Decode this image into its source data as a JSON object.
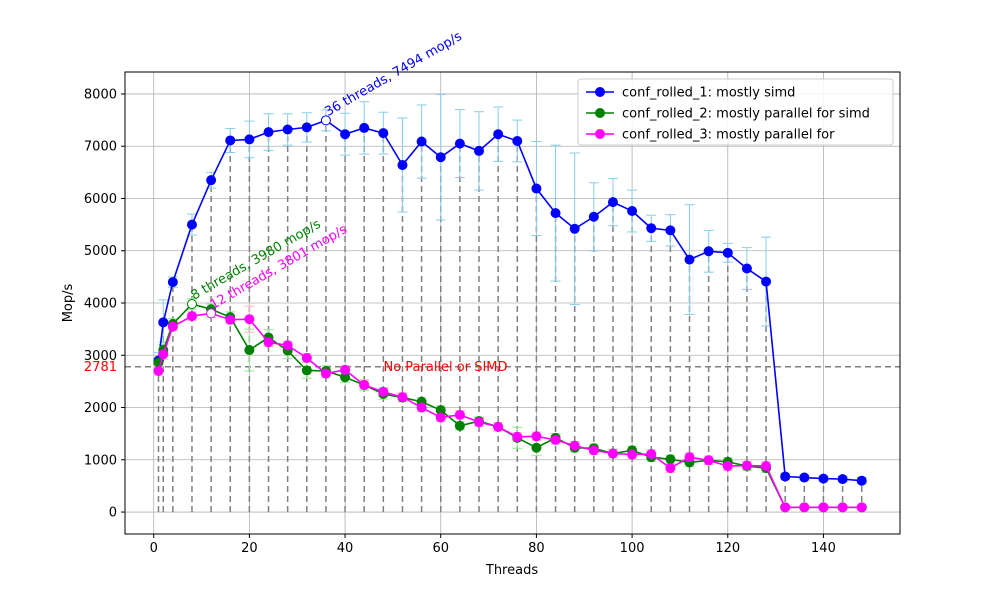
{
  "chart_data": {
    "type": "line",
    "xlabel": "Threads",
    "ylabel": "Mop/s",
    "xlim": [
      -6,
      156
    ],
    "ylim": [
      -420,
      8420
    ],
    "x_ticks": [
      0,
      20,
      40,
      60,
      80,
      100,
      120,
      140
    ],
    "y_ticks": [
      0,
      1000,
      2000,
      3000,
      4000,
      5000,
      6000,
      7000,
      8000
    ],
    "grid": true,
    "legend_position": "top-right",
    "baseline": {
      "value": 2781,
      "value_label": "2781",
      "label": "No Parallel or SIMD",
      "color": "#ff0000"
    },
    "vlines_x": [
      1,
      2,
      4,
      8,
      12,
      16,
      20,
      24,
      28,
      32,
      36,
      40,
      44,
      48,
      52,
      56,
      60,
      64,
      68,
      72,
      76,
      80,
      84,
      88,
      92,
      96,
      100,
      104,
      108,
      112,
      116,
      120,
      124,
      128,
      132,
      136,
      140,
      144,
      148
    ],
    "x": [
      1,
      2,
      4,
      8,
      12,
      16,
      20,
      24,
      28,
      32,
      36,
      40,
      44,
      48,
      52,
      56,
      60,
      64,
      68,
      72,
      76,
      80,
      84,
      88,
      92,
      96,
      100,
      104,
      108,
      112,
      116,
      120,
      124,
      128,
      132,
      136,
      140,
      144,
      148
    ],
    "series": [
      {
        "name": "conf_rolled_1: mostly simd",
        "color": "#0000ff",
        "values": [
          2900,
          3630,
          4400,
          5500,
          6350,
          7110,
          7130,
          7270,
          7320,
          7360,
          7494,
          7230,
          7350,
          7250,
          6640,
          7090,
          6790,
          7050,
          6910,
          7230,
          7100,
          6190,
          5720,
          5420,
          5650,
          5930,
          5760,
          5430,
          5390,
          4830,
          4990,
          4960,
          4660,
          4410,
          680,
          660,
          640,
          630,
          600
        ],
        "errors": [
          150,
          430,
          100,
          200,
          150,
          230,
          350,
          350,
          300,
          280,
          200,
          400,
          500,
          400,
          900,
          700,
          1200,
          650,
          750,
          520,
          400,
          900,
          1300,
          1450,
          650,
          450,
          400,
          250,
          300,
          1050,
          400,
          180,
          400,
          850,
          60,
          50,
          50,
          50,
          60
        ],
        "peak_index": 10,
        "peak_label": "36 threads, 7494 mop/s"
      },
      {
        "name": "conf_rolled_2: mostly parallel for simd",
        "color": "#008000",
        "values": [
          2860,
          3100,
          3600,
          3980,
          3880,
          3730,
          3100,
          3340,
          3090,
          2710,
          2700,
          2580,
          2430,
          2260,
          2190,
          2110,
          1950,
          1650,
          1740,
          1630,
          1420,
          1230,
          1420,
          1230,
          1220,
          1120,
          1180,
          1050,
          1010,
          950,
          990,
          960,
          880,
          840,
          90,
          90,
          90,
          90,
          90
        ],
        "errors": [
          100,
          150,
          100,
          100,
          100,
          100,
          400,
          150,
          150,
          150,
          100,
          100,
          100,
          100,
          80,
          80,
          80,
          80,
          80,
          80,
          200,
          150,
          80,
          80,
          80,
          80,
          80,
          80,
          80,
          80,
          80,
          80,
          80,
          80,
          20,
          20,
          20,
          20,
          20
        ],
        "peak_index": 3,
        "peak_label": "8 threads, 3980 mop/s"
      },
      {
        "name": "conf_rolled_3: mostly parallel for",
        "color": "#ff00ff",
        "values": [
          2700,
          3020,
          3550,
          3750,
          3801,
          3680,
          3690,
          3250,
          3190,
          2950,
          2650,
          2720,
          2430,
          2300,
          2200,
          2000,
          1810,
          1860,
          1720,
          1630,
          1440,
          1450,
          1380,
          1270,
          1180,
          1120,
          1100,
          1110,
          840,
          1050,
          990,
          880,
          890,
          880,
          90,
          90,
          90,
          90,
          90
        ],
        "errors": [
          80,
          100,
          80,
          80,
          80,
          80,
          250,
          80,
          80,
          80,
          80,
          80,
          80,
          80,
          80,
          80,
          80,
          80,
          80,
          80,
          80,
          80,
          80,
          80,
          80,
          80,
          80,
          80,
          80,
          80,
          80,
          80,
          80,
          80,
          20,
          20,
          20,
          20,
          20
        ],
        "peak_index": 4,
        "peak_label": "12 threads, 3801 mop/s"
      }
    ],
    "errorbar_colors": [
      "#87ceeb",
      "#90ee90",
      "#ffb6c1"
    ]
  }
}
